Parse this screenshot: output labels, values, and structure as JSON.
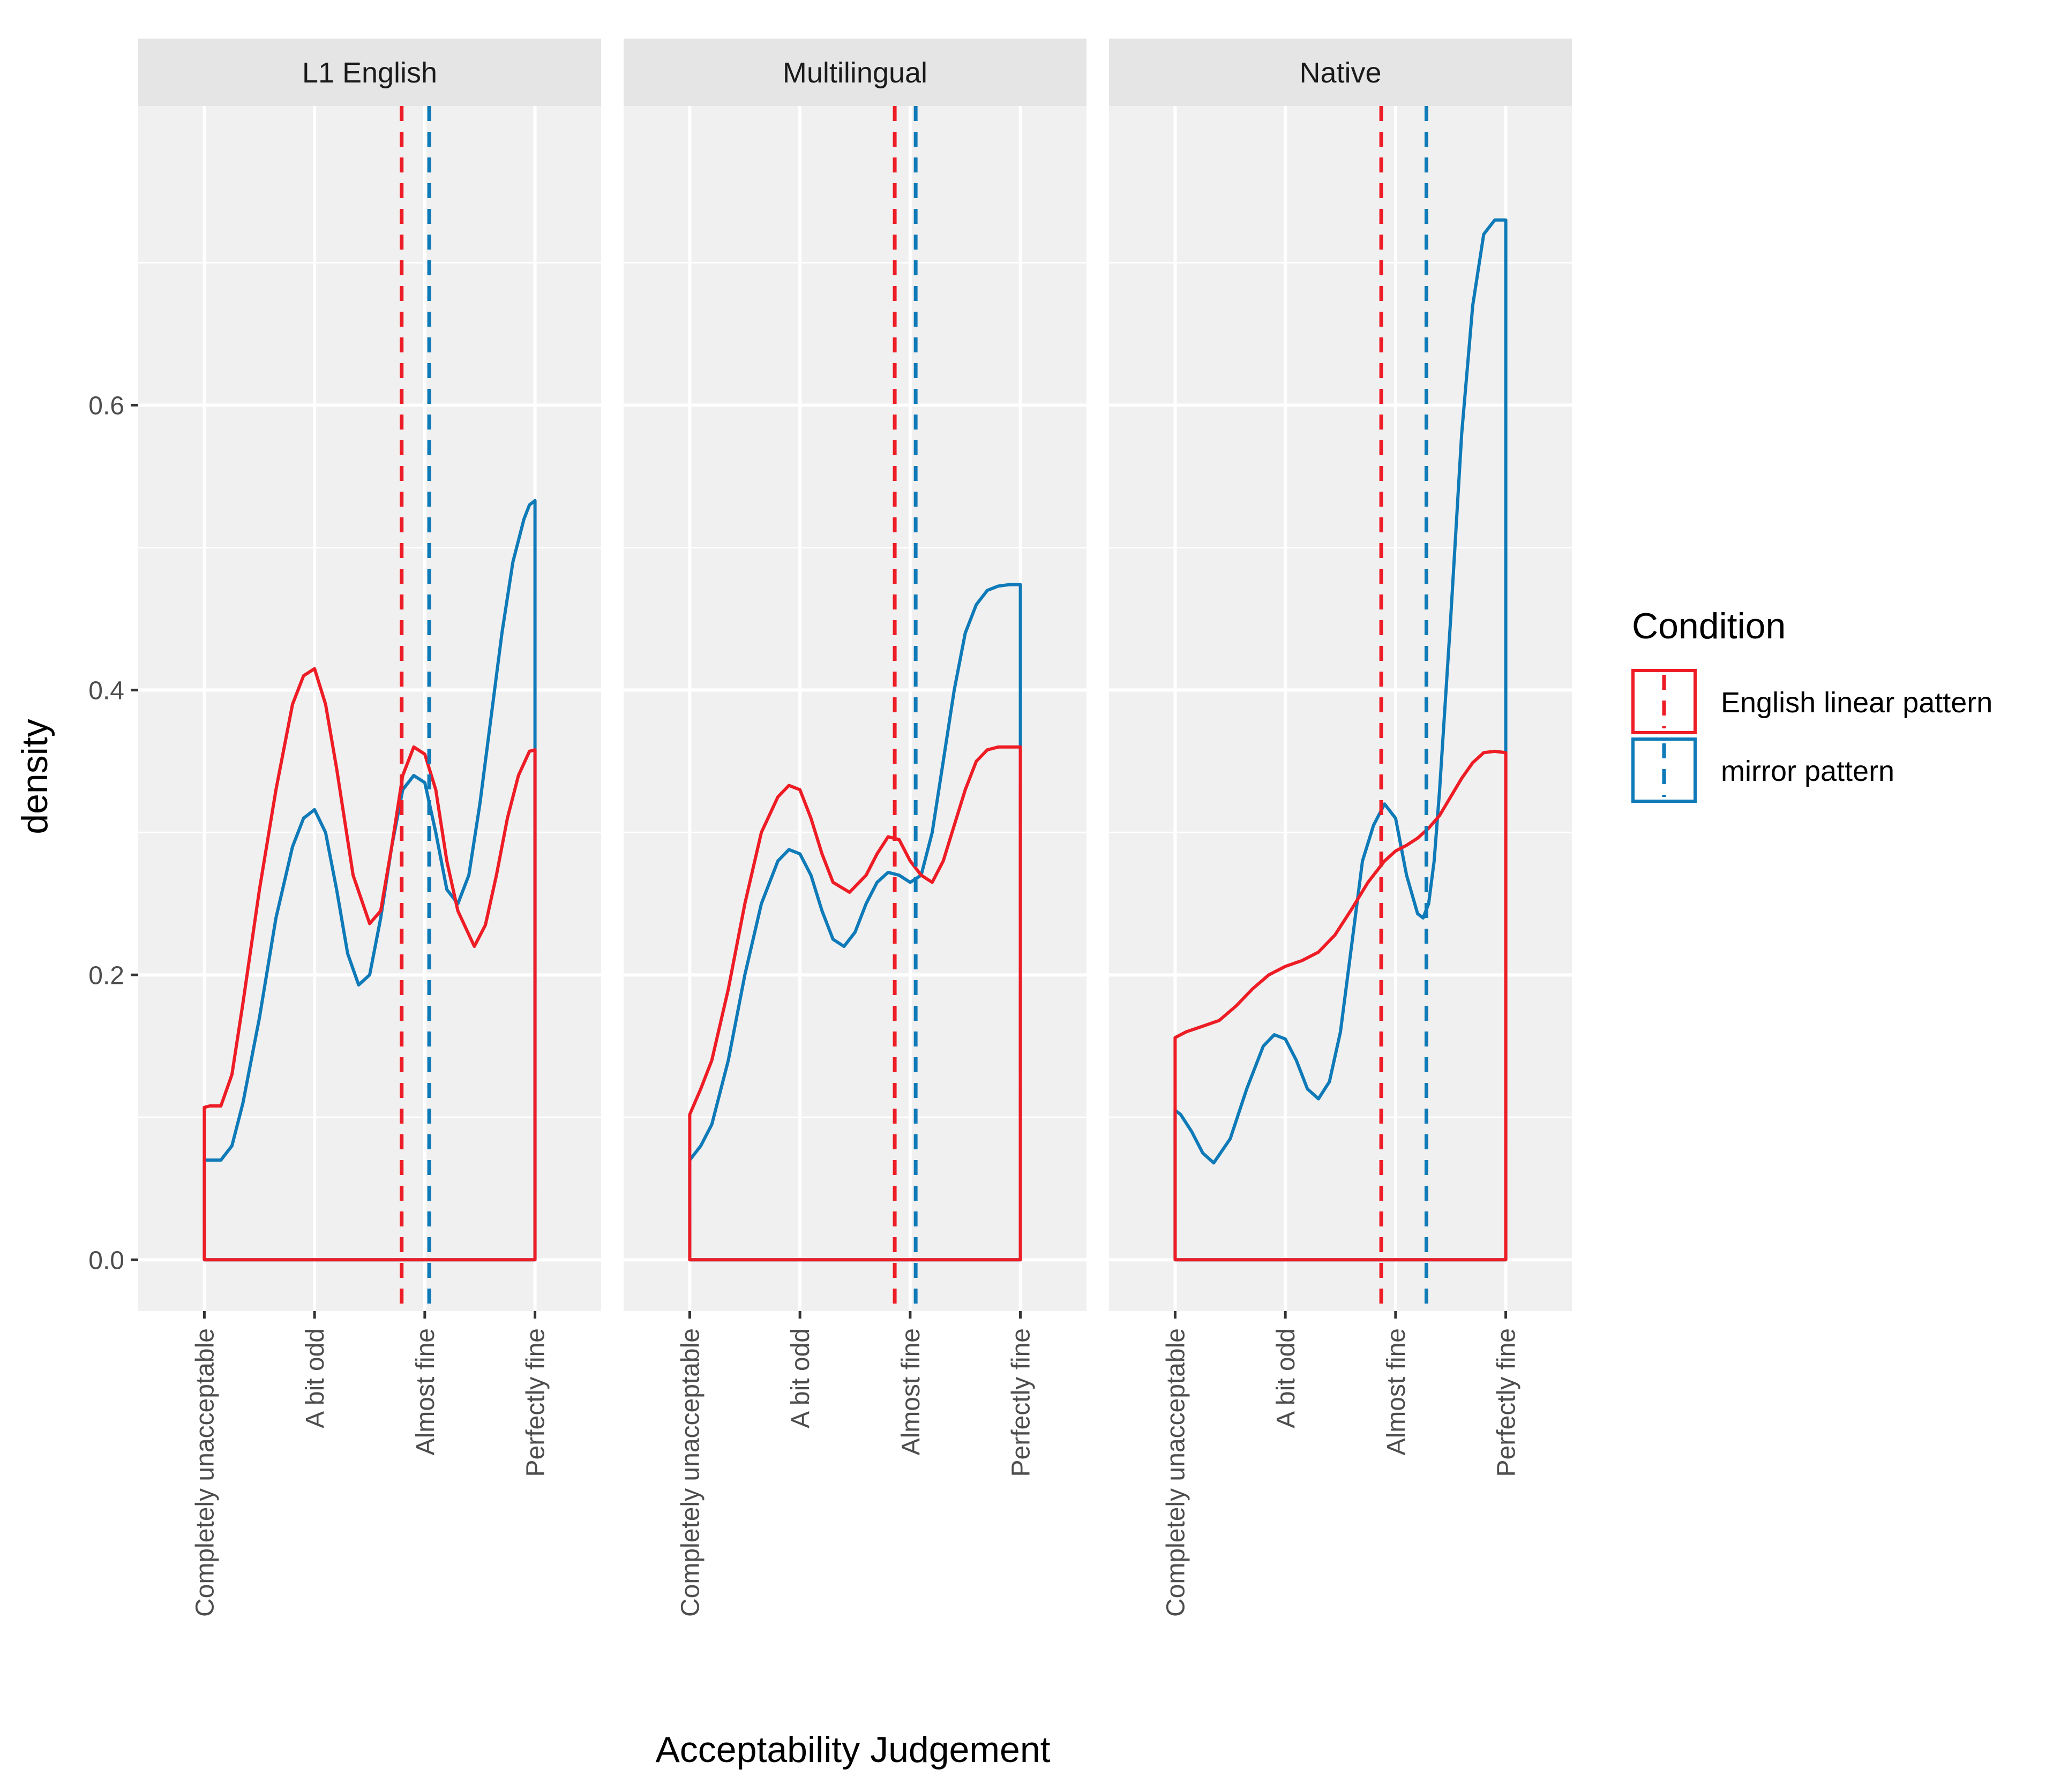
{
  "chart_data": {
    "type": "density",
    "xlabel": "Acceptability Judgement",
    "ylabel": "density",
    "categories": [
      "Completely unacceptable",
      "A bit odd",
      "Almost fine",
      "Perfectly fine"
    ],
    "x_range": [
      1,
      4
    ],
    "ylim": [
      -0.036,
      0.81
    ],
    "y_ticks": [
      0.0,
      0.2,
      0.4,
      0.6
    ],
    "y_tick_labels": [
      "0.0",
      "0.2",
      "0.4",
      "0.6"
    ],
    "grid": true,
    "legend": {
      "title": "Condition",
      "position": "right",
      "entries": [
        "English linear pattern",
        "mirror pattern"
      ]
    },
    "colors": {
      "English linear pattern": "#ee1c25",
      "mirror pattern": "#0f7ab8",
      "panel_bg": "#f0f0f0",
      "strip_bg": "#e5e5e5",
      "grid": "#ffffff"
    },
    "panels": [
      {
        "name": "L1 English",
        "series": [
          {
            "name": "English linear pattern",
            "mean": 2.79,
            "x": [
              1.0,
              1.05,
              1.15,
              1.25,
              1.35,
              1.5,
              1.65,
              1.8,
              1.9,
              2.0,
              2.1,
              2.2,
              2.35,
              2.5,
              2.6,
              2.7,
              2.8,
              2.9,
              3.0,
              3.1,
              3.2,
              3.3,
              3.45,
              3.55,
              3.65,
              3.75,
              3.85,
              3.95,
              4.0
            ],
            "y": [
              0.107,
              0.108,
              0.108,
              0.13,
              0.18,
              0.26,
              0.33,
              0.39,
              0.41,
              0.415,
              0.39,
              0.345,
              0.27,
              0.236,
              0.245,
              0.29,
              0.34,
              0.36,
              0.355,
              0.33,
              0.28,
              0.245,
              0.22,
              0.235,
              0.27,
              0.31,
              0.34,
              0.357,
              0.358
            ]
          },
          {
            "name": "mirror pattern",
            "mean": 3.04,
            "x": [
              1.0,
              1.05,
              1.15,
              1.25,
              1.35,
              1.5,
              1.65,
              1.8,
              1.9,
              2.0,
              2.1,
              2.2,
              2.3,
              2.4,
              2.5,
              2.6,
              2.7,
              2.8,
              2.9,
              3.0,
              3.1,
              3.2,
              3.3,
              3.4,
              3.5,
              3.6,
              3.7,
              3.8,
              3.9,
              3.95,
              4.0
            ],
            "y": [
              0.07,
              0.07,
              0.07,
              0.08,
              0.11,
              0.17,
              0.24,
              0.29,
              0.31,
              0.316,
              0.3,
              0.26,
              0.215,
              0.193,
              0.2,
              0.24,
              0.29,
              0.33,
              0.34,
              0.335,
              0.3,
              0.26,
              0.25,
              0.27,
              0.32,
              0.38,
              0.44,
              0.49,
              0.52,
              0.53,
              0.533
            ]
          }
        ]
      },
      {
        "name": "Multilingual",
        "series": [
          {
            "name": "English linear pattern",
            "mean": 2.86,
            "x": [
              1.0,
              1.1,
              1.2,
              1.35,
              1.5,
              1.65,
              1.8,
              1.9,
              2.0,
              2.1,
              2.2,
              2.3,
              2.45,
              2.6,
              2.7,
              2.8,
              2.9,
              3.0,
              3.1,
              3.2,
              3.3,
              3.4,
              3.5,
              3.6,
              3.7,
              3.8,
              3.9,
              4.0
            ],
            "y": [
              0.102,
              0.12,
              0.14,
              0.19,
              0.25,
              0.3,
              0.325,
              0.333,
              0.33,
              0.31,
              0.285,
              0.265,
              0.258,
              0.27,
              0.285,
              0.297,
              0.295,
              0.28,
              0.27,
              0.265,
              0.28,
              0.305,
              0.33,
              0.35,
              0.358,
              0.36,
              0.36,
              0.36
            ]
          },
          {
            "name": "mirror pattern",
            "mean": 3.05,
            "x": [
              1.0,
              1.1,
              1.2,
              1.35,
              1.5,
              1.65,
              1.8,
              1.9,
              2.0,
              2.1,
              2.2,
              2.3,
              2.4,
              2.5,
              2.6,
              2.7,
              2.8,
              2.9,
              3.0,
              3.1,
              3.2,
              3.3,
              3.4,
              3.5,
              3.6,
              3.7,
              3.8,
              3.9,
              3.95,
              4.0
            ],
            "y": [
              0.07,
              0.08,
              0.095,
              0.14,
              0.2,
              0.25,
              0.28,
              0.288,
              0.285,
              0.27,
              0.245,
              0.225,
              0.22,
              0.23,
              0.25,
              0.265,
              0.272,
              0.27,
              0.265,
              0.27,
              0.3,
              0.35,
              0.4,
              0.44,
              0.46,
              0.47,
              0.473,
              0.474,
              0.474,
              0.474
            ]
          }
        ]
      },
      {
        "name": "Native",
        "series": [
          {
            "name": "English linear pattern",
            "mean": 2.87,
            "x": [
              1.0,
              1.1,
              1.25,
              1.4,
              1.55,
              1.7,
              1.85,
              2.0,
              2.15,
              2.3,
              2.45,
              2.6,
              2.75,
              2.9,
              3.0,
              3.1,
              3.2,
              3.3,
              3.4,
              3.5,
              3.6,
              3.7,
              3.8,
              3.9,
              4.0
            ],
            "y": [
              0.156,
              0.16,
              0.164,
              0.168,
              0.178,
              0.19,
              0.2,
              0.206,
              0.21,
              0.216,
              0.228,
              0.246,
              0.265,
              0.28,
              0.287,
              0.291,
              0.296,
              0.303,
              0.312,
              0.325,
              0.338,
              0.349,
              0.356,
              0.357,
              0.356
            ]
          },
          {
            "name": "mirror pattern",
            "mean": 3.28,
            "x": [
              1.0,
              1.05,
              1.15,
              1.25,
              1.35,
              1.5,
              1.65,
              1.8,
              1.9,
              2.0,
              2.1,
              2.2,
              2.3,
              2.4,
              2.5,
              2.6,
              2.7,
              2.8,
              2.9,
              3.0,
              3.1,
              3.2,
              3.25,
              3.3,
              3.35,
              3.4,
              3.5,
              3.6,
              3.7,
              3.8,
              3.9,
              3.95,
              4.0
            ],
            "y": [
              0.105,
              0.102,
              0.09,
              0.075,
              0.068,
              0.085,
              0.12,
              0.15,
              0.158,
              0.155,
              0.14,
              0.12,
              0.113,
              0.125,
              0.16,
              0.22,
              0.28,
              0.305,
              0.32,
              0.31,
              0.27,
              0.243,
              0.24,
              0.25,
              0.28,
              0.33,
              0.45,
              0.58,
              0.67,
              0.72,
              0.73,
              0.73,
              0.73
            ]
          }
        ]
      }
    ]
  }
}
